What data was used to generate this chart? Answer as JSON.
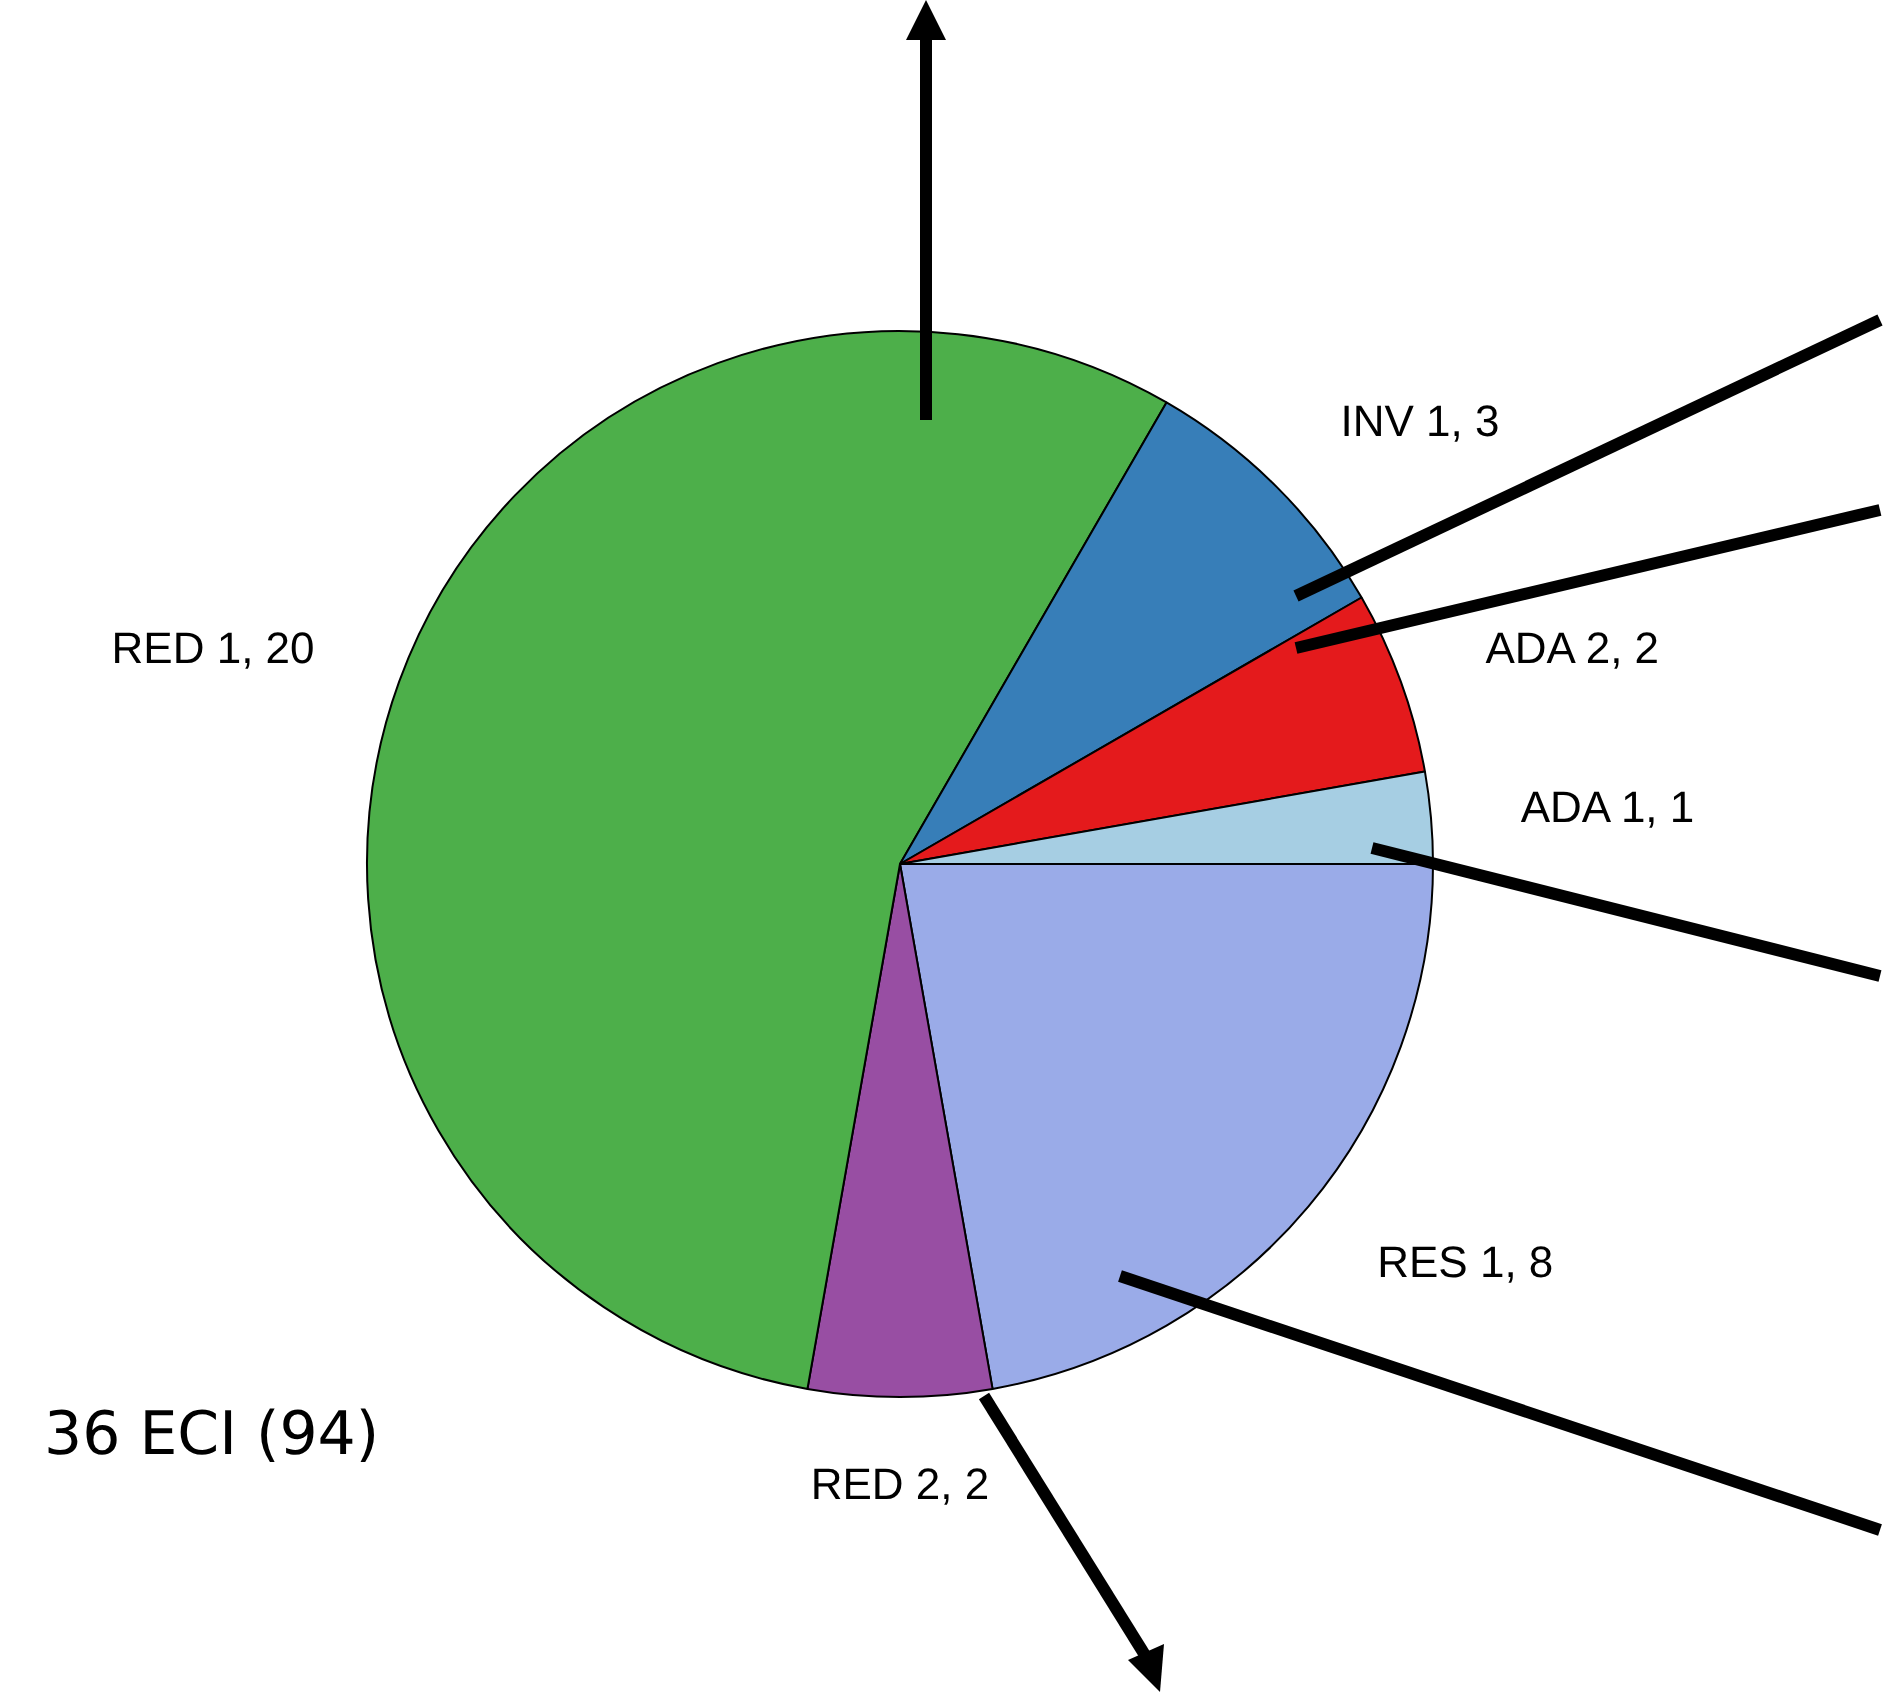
{
  "chart_data": {
    "type": "pie",
    "categories": [
      "RES 1, 8",
      "RED 2, 2",
      "RED 1, 20",
      "INV 1, 3",
      "ADA 2, 2",
      "ADA 1, 1"
    ],
    "values": [
      8,
      2,
      20,
      3,
      2,
      1
    ],
    "colors": [
      "#9aabe8",
      "#984ea3",
      "#4daf4a",
      "#377eb8",
      "#e41a1c",
      "#a6cee3"
    ],
    "legend": false,
    "annotations": [
      "36 ECI (94)"
    ]
  }
}
